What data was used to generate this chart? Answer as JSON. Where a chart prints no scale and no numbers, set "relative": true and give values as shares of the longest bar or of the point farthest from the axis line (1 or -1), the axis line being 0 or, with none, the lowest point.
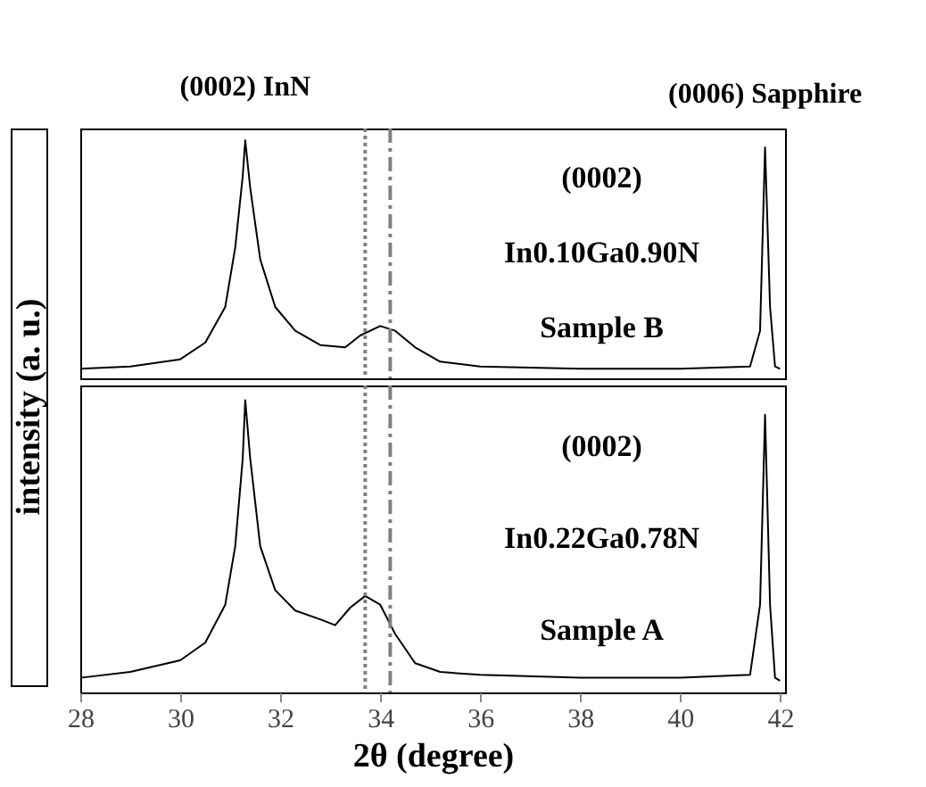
{
  "chart_data": [
    {
      "type": "line",
      "relative": true,
      "ylabel": "intensity (a. u.)",
      "xlim": [
        28,
        42.1
      ],
      "xticks": [
        28,
        30,
        32,
        34,
        36,
        38,
        40,
        42
      ],
      "tick_labels": false,
      "grid": false,
      "line_style": "solid",
      "x": [
        28,
        29,
        30,
        30.5,
        30.9,
        31.1,
        31.25,
        31.3,
        31.4,
        31.6,
        31.9,
        32.3,
        32.8,
        33.3,
        33.6,
        34.0,
        34.3,
        34.7,
        35.2,
        36,
        38,
        40,
        41.4,
        41.6,
        41.7,
        41.8,
        41.9,
        42
      ],
      "series": [
        {
          "color": "#000000",
          "values": [
            0.04,
            0.05,
            0.08,
            0.15,
            0.3,
            0.55,
            0.85,
            1.0,
            0.8,
            0.5,
            0.3,
            0.2,
            0.14,
            0.13,
            0.18,
            0.22,
            0.2,
            0.13,
            0.07,
            0.05,
            0.04,
            0.04,
            0.05,
            0.2,
            0.97,
            0.3,
            0.05,
            0.04
          ]
        }
      ],
      "ref_lines": [
        {
          "axis": "x",
          "value": 33.7,
          "color": "#808080",
          "line_style": "dotted"
        },
        {
          "axis": "x",
          "value": 34.2,
          "color": "#808080",
          "line_style": "dashed"
        }
      ],
      "annotations": [
        {
          "text": "(0002) InN",
          "x": 31.3,
          "y": 1.0
        },
        {
          "text": "(0006) Sapphire",
          "x": 41.7,
          "y": 0.97
        },
        "(0002)",
        "In0.10Ga0.90N",
        "Sample B"
      ]
    },
    {
      "type": "line",
      "relative": true,
      "xlabel": "2θ (degree)",
      "xlim": [
        28,
        42.1
      ],
      "xticks": [
        28,
        30,
        32,
        34,
        36,
        38,
        40,
        42
      ],
      "tick_labels": "x",
      "grid": false,
      "line_style": "solid",
      "x": [
        28,
        29,
        30,
        30.5,
        30.9,
        31.1,
        31.25,
        31.3,
        31.4,
        31.6,
        31.9,
        32.3,
        32.8,
        33.1,
        33.4,
        33.7,
        34.0,
        34.3,
        34.7,
        35.2,
        36,
        38,
        40,
        41.4,
        41.6,
        41.7,
        41.8,
        41.9,
        42
      ],
      "series": [
        {
          "color": "#000000",
          "values": [
            0.05,
            0.07,
            0.11,
            0.17,
            0.3,
            0.5,
            0.8,
            1.0,
            0.8,
            0.5,
            0.35,
            0.28,
            0.25,
            0.23,
            0.29,
            0.33,
            0.3,
            0.2,
            0.1,
            0.07,
            0.06,
            0.05,
            0.05,
            0.06,
            0.3,
            0.95,
            0.3,
            0.05,
            0.04
          ]
        }
      ],
      "ref_lines": [
        {
          "axis": "x",
          "value": 33.7,
          "color": "#808080",
          "line_style": "dotted"
        },
        {
          "axis": "x",
          "value": 34.2,
          "color": "#808080",
          "line_style": "dashed"
        }
      ],
      "annotations": [
        "(0002)",
        "In0.22Ga0.78N",
        "Sample A"
      ]
    }
  ]
}
